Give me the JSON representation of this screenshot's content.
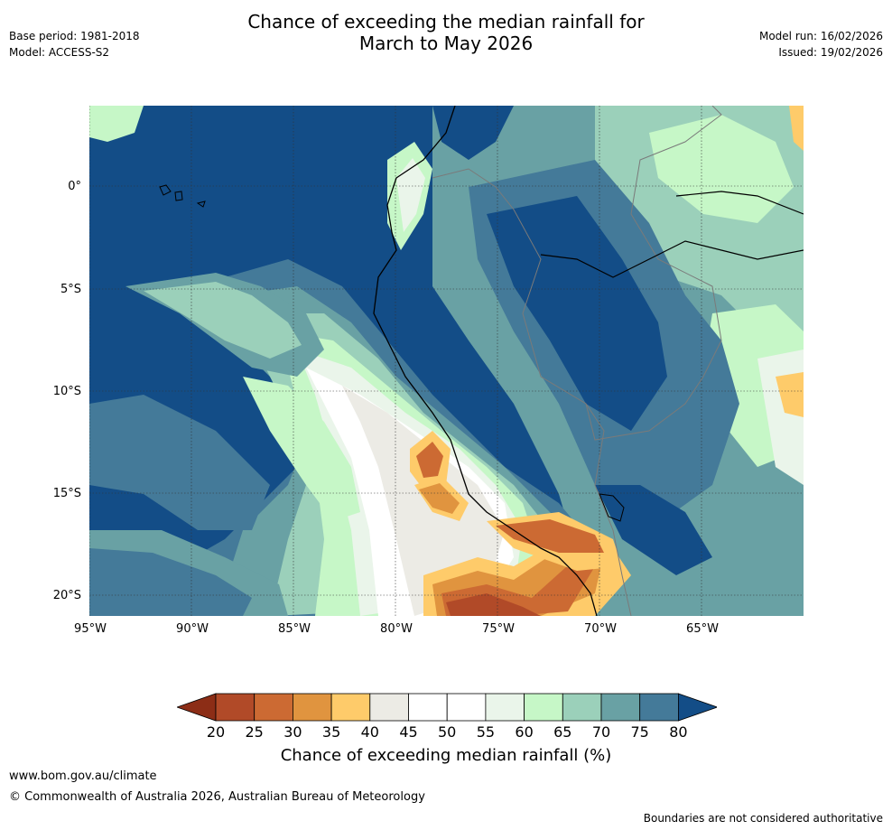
{
  "title": {
    "line1": "Chance of exceeding the median rainfall for",
    "line2": "March to May 2026"
  },
  "meta_left": {
    "base_period": "Base period: 1981-2018",
    "model": "Model: ACCESS-S2"
  },
  "meta_right": {
    "model_run": "Model run: 16/02/2026",
    "issued": "Issued: 19/02/2026"
  },
  "map": {
    "lat_labels": [
      "0°",
      "5°S",
      "10°S",
      "15°S",
      "20°S"
    ],
    "lon_labels": [
      "95°W",
      "90°W",
      "85°W",
      "80°W",
      "75°W",
      "70°W",
      "65°W"
    ],
    "lat_values": [
      0,
      -5,
      -10,
      -15,
      -20
    ],
    "lon_values": [
      -95,
      -90,
      -85,
      -80,
      -75,
      -70,
      -65
    ]
  },
  "legend": {
    "label": "Chance of exceeding median rainfall (%)",
    "ticks": [
      "20",
      "25",
      "30",
      "35",
      "40",
      "45",
      "50",
      "55",
      "60",
      "65",
      "70",
      "75",
      "80"
    ],
    "colors": [
      "#8c2d16",
      "#b14a28",
      "#cc6a33",
      "#e0943f",
      "#fecb6a",
      "#ecebe5",
      "#ffffff",
      "#ffffff",
      "#eaf5ea",
      "#c6f7c7",
      "#9bd0ba",
      "#69a1a4",
      "#447a99",
      "#134d87"
    ]
  },
  "footer": {
    "url": "www.bom.gov.au/climate",
    "copyright": "© Commonwealth of Australia 2026, Australian Bureau of Meteorology",
    "note": "Boundaries are not considered authoritative"
  }
}
